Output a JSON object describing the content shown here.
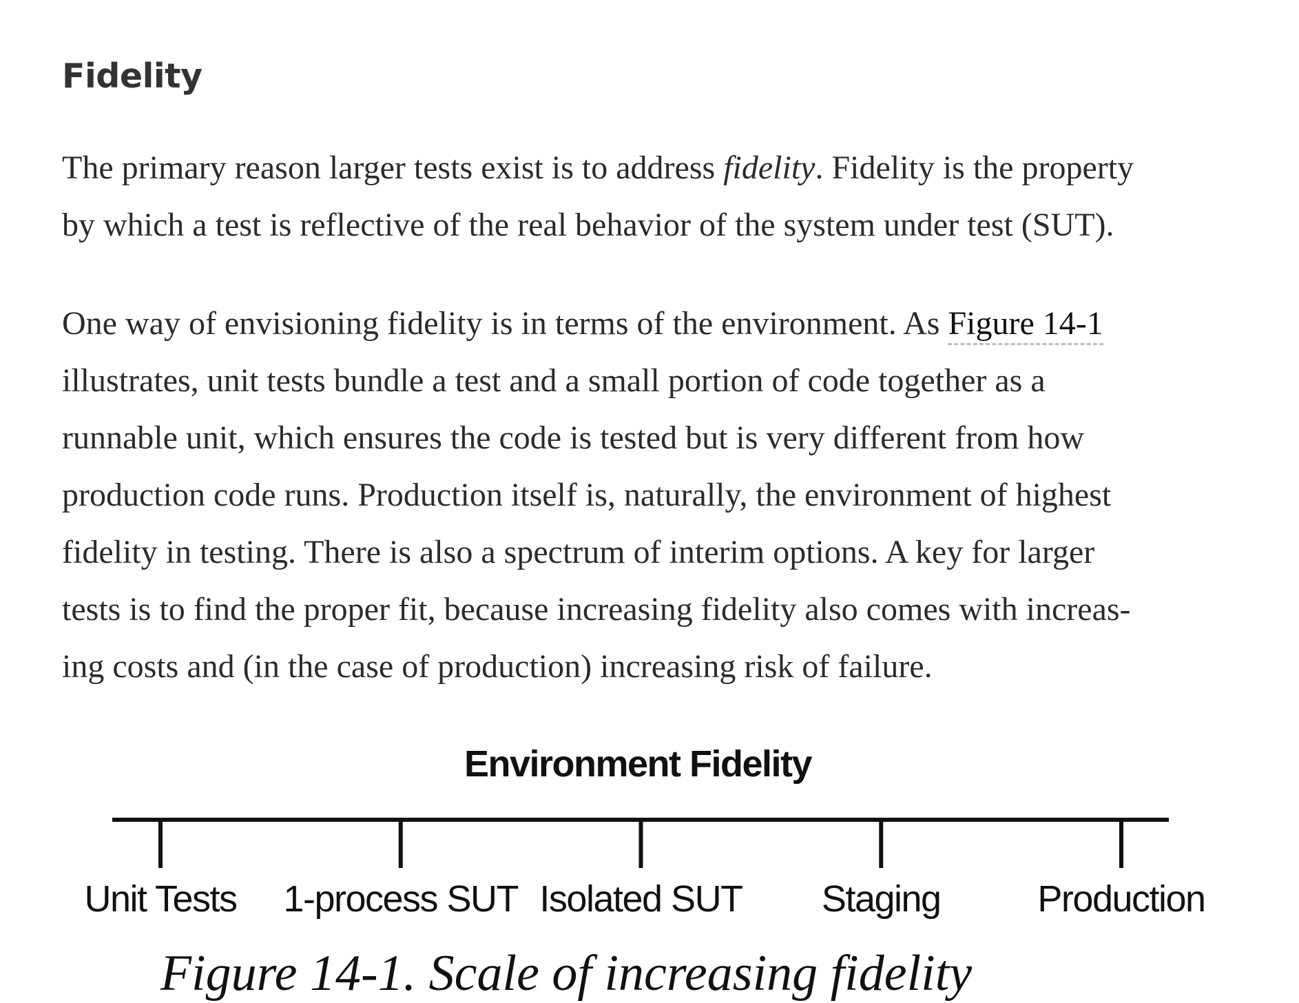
{
  "section": {
    "title": "Fidelity"
  },
  "paragraph1": {
    "line1_before": "The primary reason larger tests exist is to address ",
    "line1_emph": "fidelity",
    "line1_after": ". Fidelity is the property",
    "line2": "by which a test is reflective of the real behavior of the system under test (SUT)."
  },
  "paragraph2": {
    "line1_before": "One way of envisioning fidelity is in terms of the environment. As ",
    "line1_link": "Figure 14-1",
    "line2": "illustrates, unit tests bundle a test and a small portion of code together as a",
    "line3": "runnable unit, which ensures the code is tested but is very different from how",
    "line4": "production code runs. Production itself is, naturally, the environment of highest",
    "line5": "fidelity in testing. There is also a spectrum of interim options. A key for larger",
    "line6": "tests is to find the proper fit, because increasing fidelity also comes with increas-",
    "line7": "ing costs and (in the case of production) increasing risk of failure."
  },
  "figure": {
    "title": "Environment Fidelity",
    "ticks": [
      "Unit Tests",
      "1-process SUT",
      "Isolated SUT",
      "Staging",
      "Production"
    ],
    "caption": "Figure 14-1. Scale of increasing fidelity"
  }
}
